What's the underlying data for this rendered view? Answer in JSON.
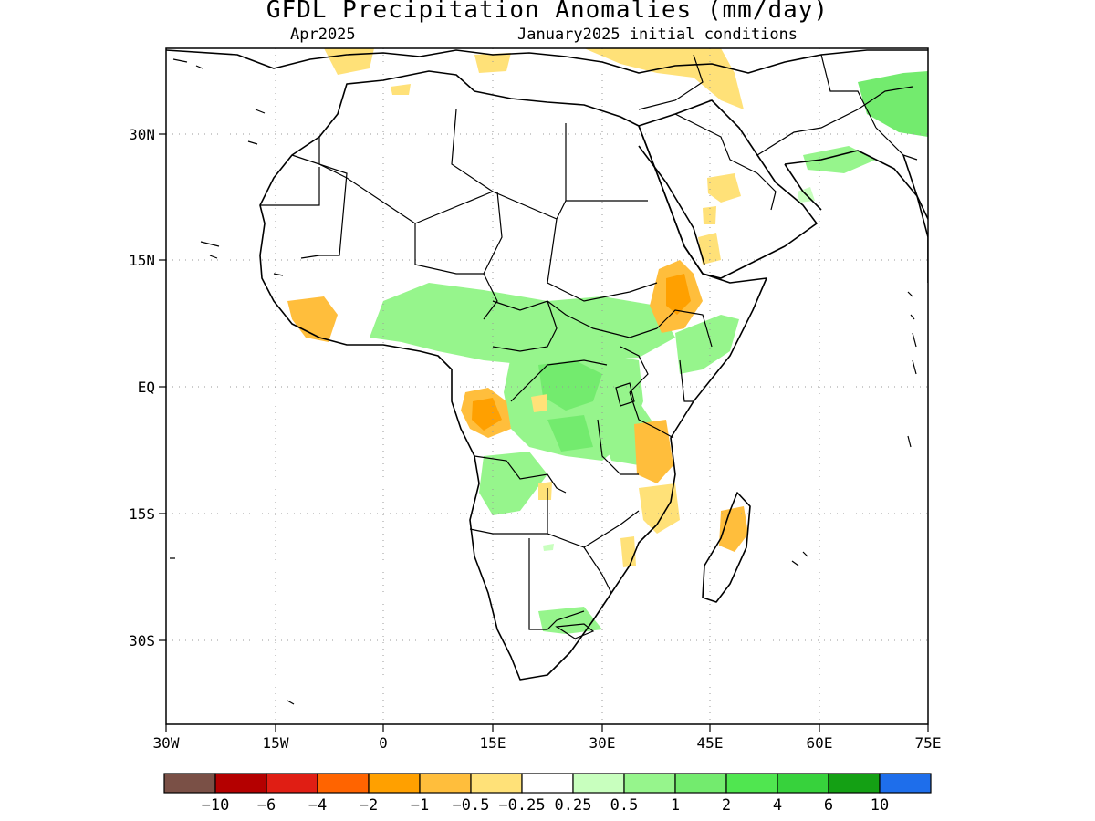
{
  "title": "GFDL Precipitation Anomalies (mm/day)",
  "valid_month": "Apr2025",
  "init_conditions": "January2025 initial conditions",
  "map": {
    "lon_range": [
      -30,
      75
    ],
    "lat_range": [
      -40,
      40
    ],
    "lon_ticks": [
      {
        "value": -30,
        "label": "30W"
      },
      {
        "value": -15,
        "label": "15W"
      },
      {
        "value": 0,
        "label": "0"
      },
      {
        "value": 15,
        "label": "15E"
      },
      {
        "value": 30,
        "label": "30E"
      },
      {
        "value": 45,
        "label": "45E"
      },
      {
        "value": 60,
        "label": "60E"
      },
      {
        "value": 75,
        "label": "75E"
      }
    ],
    "lat_ticks": [
      {
        "value": 30,
        "label": "30N"
      },
      {
        "value": 15,
        "label": "15N"
      },
      {
        "value": 0,
        "label": "EQ"
      },
      {
        "value": -15,
        "label": "15S"
      },
      {
        "value": -30,
        "label": "30S"
      }
    ],
    "gridlines": "dotted"
  },
  "colorbar": {
    "colors": [
      "#7a5046",
      "#b40000",
      "#e01e14",
      "#ff6400",
      "#ffa000",
      "#ffbe3c",
      "#ffe178",
      "#ffffff",
      "#c8ffbe",
      "#96f58c",
      "#73eb6e",
      "#50e650",
      "#37d23c",
      "#14a014",
      "#1e6eeb"
    ],
    "labels": [
      "−10",
      "−6",
      "−4",
      "−2",
      "−1",
      "−0.5",
      "−0.25",
      "0.25",
      "0.5",
      "1",
      "2",
      "4",
      "6",
      "10"
    ]
  },
  "color_keys": {
    "dry_light": "#ffe178",
    "dry_mid": "#ffbe3c",
    "dry_strong": "#ffa000",
    "wet_light": "#c8ffbe",
    "wet_mid": "#96f58c",
    "wet_strong": "#73eb6e",
    "wet_deep": "#50e650"
  }
}
